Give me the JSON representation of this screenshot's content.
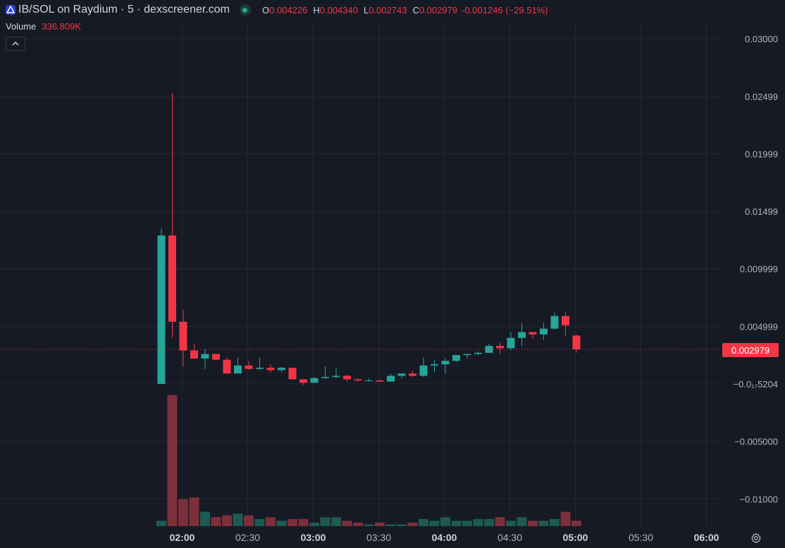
{
  "header": {
    "title": "IB/SOL on Raydium · 5 · dexscreener.com",
    "ohlc": {
      "o_label": "O",
      "o_value": "0.004226",
      "h_label": "H",
      "h_value": "0.004340",
      "l_label": "L",
      "l_value": "0.002743",
      "c_label": "C",
      "c_value": "0.002979",
      "change": "-0.001246 (−29.51%)"
    },
    "volume_label": "Volume",
    "volume_value": "336.809K"
  },
  "current_price_label": "0.002979",
  "colors": {
    "up": "#26a69a",
    "down": "#f23645",
    "up_vol": "#1d5a52",
    "down_vol": "#7d2f3b",
    "grid": "#242833",
    "bg": "#161a25"
  },
  "icons": {
    "logo": "raydium-logo-icon",
    "status": "live-status-icon",
    "collapse": "chevron-up-icon",
    "settings": "gear-icon"
  },
  "chart_data": {
    "type": "candlestick",
    "interval": "5",
    "y_ticks": [
      "0.03000",
      "0.02499",
      "0.01999",
      "0.01499",
      "0.009999",
      "0.004999",
      "−0.0₁₇5204",
      "−0.005000",
      "−0.01000"
    ],
    "y_tick_values": [
      0.03,
      0.02499,
      0.01999,
      0.01499,
      0.009999,
      0.004999,
      0.0,
      -0.005,
      -0.01
    ],
    "x_ticks": [
      {
        "label": "02:00",
        "bold": true
      },
      {
        "label": "02:30",
        "bold": false
      },
      {
        "label": "03:00",
        "bold": true
      },
      {
        "label": "03:30",
        "bold": false
      },
      {
        "label": "04:00",
        "bold": true
      },
      {
        "label": "04:30",
        "bold": false
      },
      {
        "label": "05:00",
        "bold": true
      },
      {
        "label": "05:30",
        "bold": false
      },
      {
        "label": "06:00",
        "bold": true
      }
    ],
    "first_candle_time": "01:55",
    "candles": [
      {
        "o": 0.0,
        "h": 0.0135,
        "l": 0.0,
        "c": 0.0129,
        "v": 0.3
      },
      {
        "o": 0.0129,
        "h": 0.0253,
        "l": 0.004,
        "c": 0.0054,
        "v": 7.3
      },
      {
        "o": 0.0054,
        "h": 0.0064,
        "l": 0.0015,
        "c": 0.0029,
        "v": 1.5
      },
      {
        "o": 0.0029,
        "h": 0.0035,
        "l": 0.0022,
        "c": 0.0022,
        "v": 1.6
      },
      {
        "o": 0.0022,
        "h": 0.003,
        "l": 0.0013,
        "c": 0.0026,
        "v": 0.8
      },
      {
        "o": 0.0026,
        "h": 0.0026,
        "l": 0.002,
        "c": 0.0021,
        "v": 0.5
      },
      {
        "o": 0.0021,
        "h": 0.0023,
        "l": 0.0009,
        "c": 0.0009,
        "v": 0.6
      },
      {
        "o": 0.0009,
        "h": 0.0023,
        "l": 0.0009,
        "c": 0.0016,
        "v": 0.7
      },
      {
        "o": 0.0016,
        "h": 0.002,
        "l": 0.0012,
        "c": 0.0013,
        "v": 0.6
      },
      {
        "o": 0.0013,
        "h": 0.0023,
        "l": 0.0012,
        "c": 0.0014,
        "v": 0.4
      },
      {
        "o": 0.0014,
        "h": 0.0017,
        "l": 0.001,
        "c": 0.0012,
        "v": 0.5
      },
      {
        "o": 0.0012,
        "h": 0.0015,
        "l": 0.001,
        "c": 0.0014,
        "v": 0.3
      },
      {
        "o": 0.0014,
        "h": 0.0014,
        "l": 0.0004,
        "c": 0.0004,
        "v": 0.4
      },
      {
        "o": 0.0004,
        "h": 0.0004,
        "l": -0.0001,
        "c": 0.0001,
        "v": 0.4
      },
      {
        "o": 0.0001,
        "h": 0.0006,
        "l": 0.0001,
        "c": 0.0005,
        "v": 0.2
      },
      {
        "o": 0.0005,
        "h": 0.0015,
        "l": 0.0004,
        "c": 0.0006,
        "v": 0.5
      },
      {
        "o": 0.0006,
        "h": 0.0014,
        "l": 0.0005,
        "c": 0.0007,
        "v": 0.5
      },
      {
        "o": 0.0007,
        "h": 0.0008,
        "l": 0.0002,
        "c": 0.0004,
        "v": 0.3
      },
      {
        "o": 0.0004,
        "h": 0.0005,
        "l": 0.0002,
        "c": 0.0003,
        "v": 0.2
      },
      {
        "o": 0.0003,
        "h": 0.0005,
        "l": 0.0002,
        "c": 0.0003,
        "v": 0.1
      },
      {
        "o": 0.0003,
        "h": 0.0004,
        "l": 0.0002,
        "c": 0.0002,
        "v": 0.2
      },
      {
        "o": 0.0002,
        "h": 0.0009,
        "l": 0.0002,
        "c": 0.0007,
        "v": 0.1
      },
      {
        "o": 0.0007,
        "h": 0.0009,
        "l": 0.0005,
        "c": 0.0009,
        "v": 0.1
      },
      {
        "o": 0.0009,
        "h": 0.0011,
        "l": 0.0006,
        "c": 0.0007,
        "v": 0.2
      },
      {
        "o": 0.0007,
        "h": 0.0023,
        "l": 0.0006,
        "c": 0.0016,
        "v": 0.4
      },
      {
        "o": 0.0016,
        "h": 0.0021,
        "l": 0.001,
        "c": 0.0017,
        "v": 0.3
      },
      {
        "o": 0.0017,
        "h": 0.0022,
        "l": 0.0009,
        "c": 0.002,
        "v": 0.5
      },
      {
        "o": 0.002,
        "h": 0.0025,
        "l": 0.0019,
        "c": 0.0025,
        "v": 0.3
      },
      {
        "o": 0.0025,
        "h": 0.0026,
        "l": 0.0022,
        "c": 0.0026,
        "v": 0.3
      },
      {
        "o": 0.0026,
        "h": 0.0028,
        "l": 0.0025,
        "c": 0.0027,
        "v": 0.4
      },
      {
        "o": 0.0027,
        "h": 0.0035,
        "l": 0.0027,
        "c": 0.0033,
        "v": 0.4
      },
      {
        "o": 0.0033,
        "h": 0.0036,
        "l": 0.0026,
        "c": 0.0031,
        "v": 0.5
      },
      {
        "o": 0.0031,
        "h": 0.0045,
        "l": 0.0029,
        "c": 0.004,
        "v": 0.3
      },
      {
        "o": 0.004,
        "h": 0.0053,
        "l": 0.0033,
        "c": 0.0045,
        "v": 0.5
      },
      {
        "o": 0.0045,
        "h": 0.0045,
        "l": 0.0039,
        "c": 0.0043,
        "v": 0.3
      },
      {
        "o": 0.0043,
        "h": 0.0053,
        "l": 0.0038,
        "c": 0.0048,
        "v": 0.3
      },
      {
        "o": 0.0048,
        "h": 0.0062,
        "l": 0.0047,
        "c": 0.0059,
        "v": 0.4
      },
      {
        "o": 0.0059,
        "h": 0.0063,
        "l": 0.0041,
        "c": 0.0051,
        "v": 0.8
      },
      {
        "o": 0.0042,
        "h": 0.0043,
        "l": 0.0027,
        "c": 0.003,
        "v": 0.3
      }
    ]
  }
}
